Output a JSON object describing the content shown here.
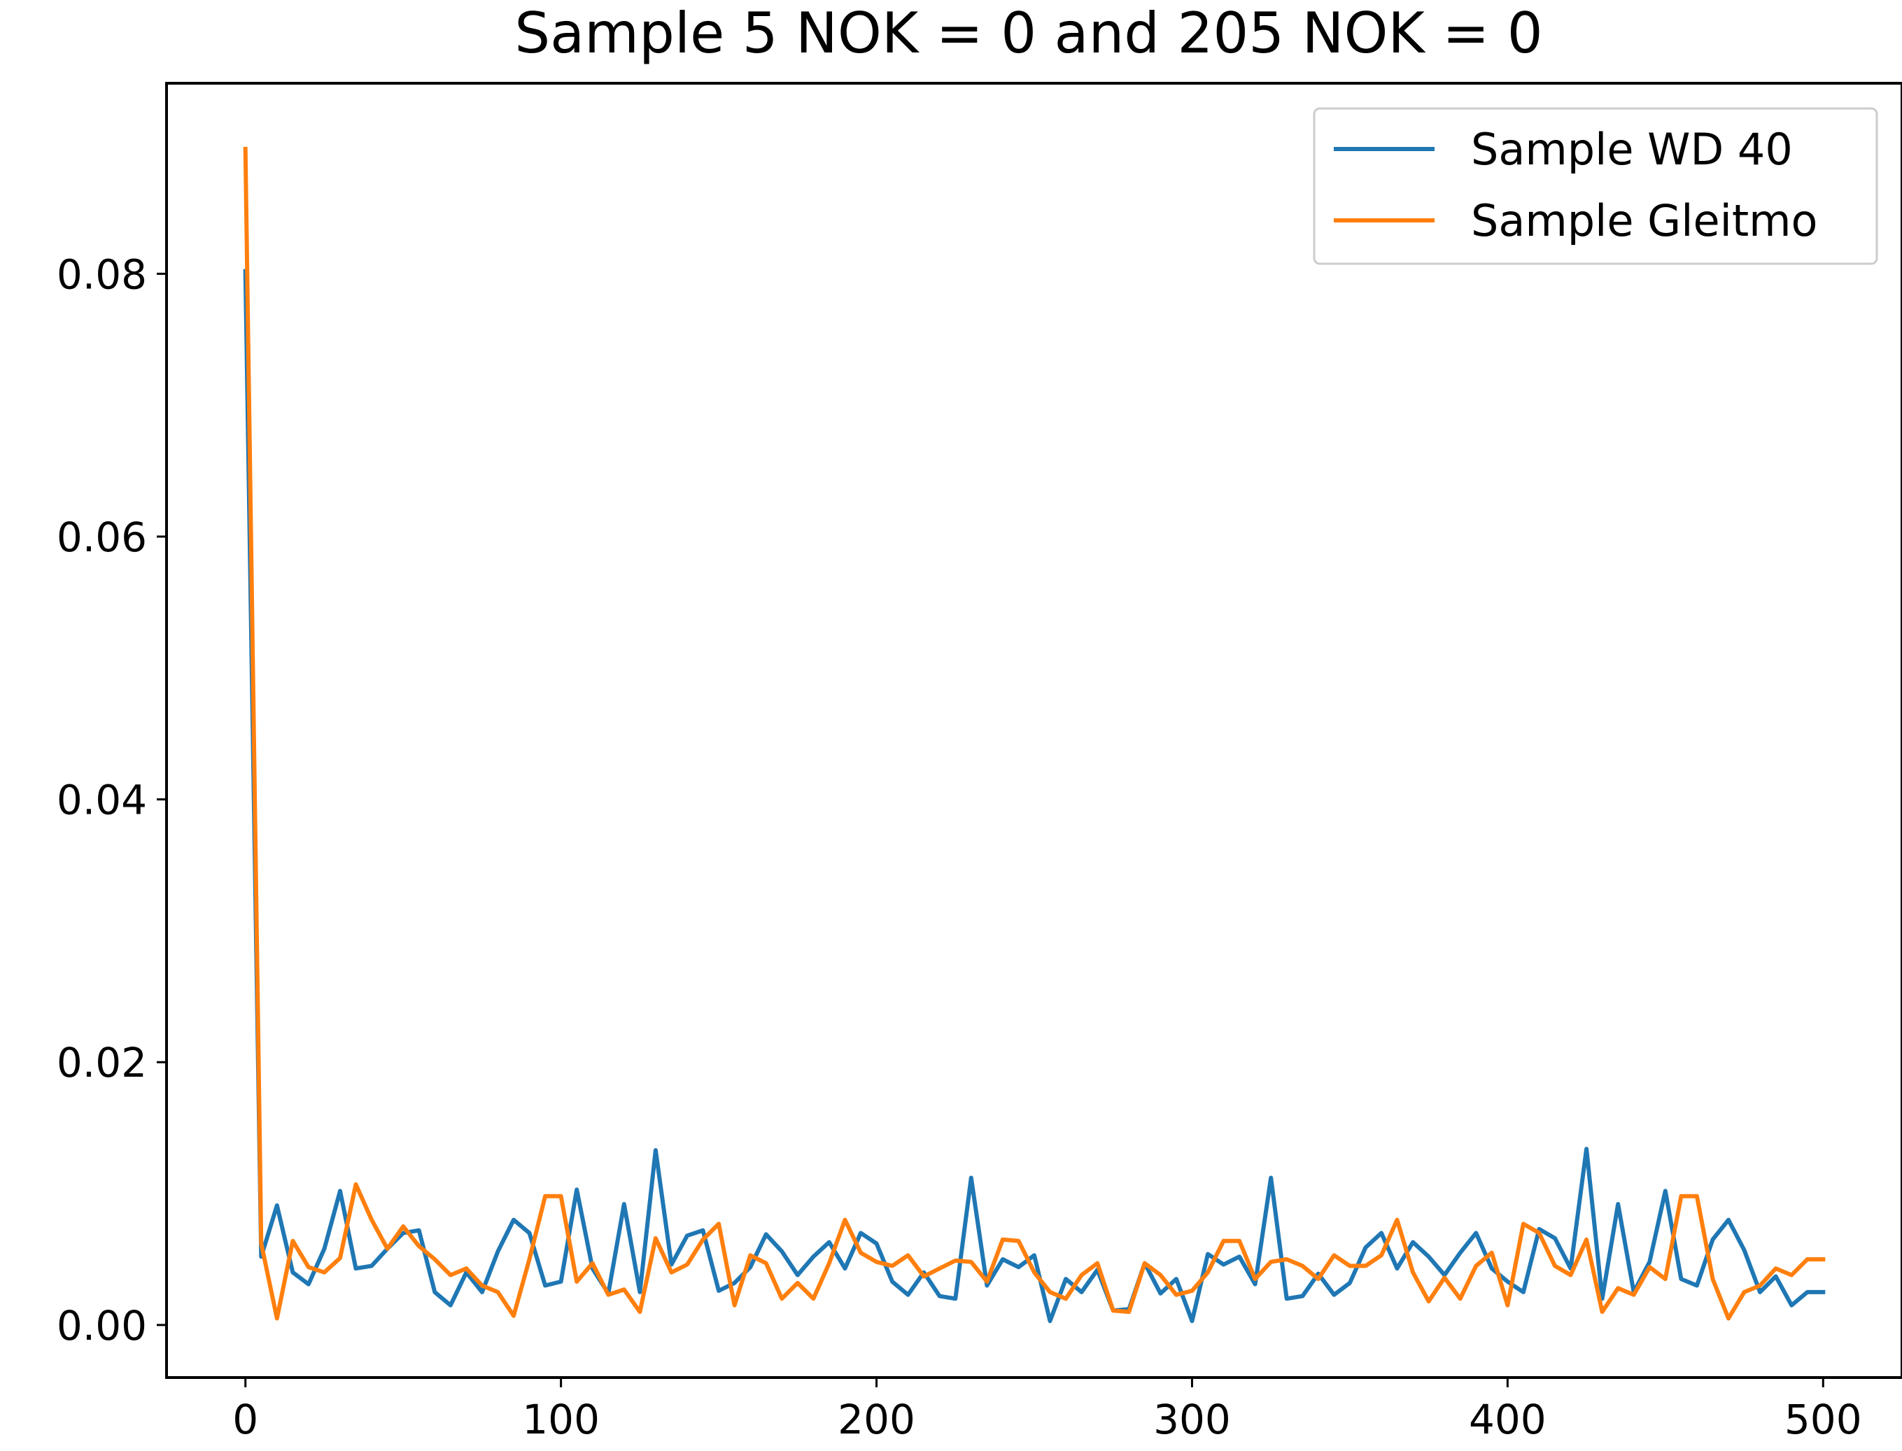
{
  "chart_data": {
    "type": "line",
    "title": "Sample 5 NOK = 0 and 205 NOK = 0",
    "xlabel": "",
    "ylabel": "",
    "xlim": [
      -25,
      525
    ],
    "ylim": [
      -0.004,
      0.0945
    ],
    "xticks": [
      0,
      100,
      200,
      300,
      400,
      500
    ],
    "xtick_labels": [
      "0",
      "100",
      "200",
      "300",
      "400",
      "500"
    ],
    "yticks": [
      0.0,
      0.02,
      0.04,
      0.06,
      0.08
    ],
    "ytick_labels": [
      "0.00",
      "0.02",
      "0.04",
      "0.06",
      "0.08"
    ],
    "grid": false,
    "legend_position": "top-right",
    "x": [
      0,
      5,
      10,
      15,
      20,
      25,
      30,
      35,
      40,
      45,
      50,
      55,
      60,
      65,
      70,
      75,
      80,
      85,
      90,
      95,
      100,
      105,
      110,
      115,
      120,
      125,
      130,
      135,
      140,
      145,
      150,
      155,
      160,
      165,
      170,
      175,
      180,
      185,
      190,
      195,
      200,
      205,
      210,
      215,
      220,
      225,
      230,
      235,
      240,
      245,
      250,
      255,
      260,
      265,
      270,
      275,
      280,
      285,
      290,
      295,
      300,
      305,
      310,
      315,
      320,
      325,
      330,
      335,
      340,
      345,
      350,
      355,
      360,
      365,
      370,
      375,
      380,
      385,
      390,
      395,
      400,
      405,
      410,
      415,
      420,
      425,
      430,
      435,
      440,
      445,
      450,
      455,
      460,
      465,
      470,
      475,
      480,
      485,
      490,
      495,
      500
    ],
    "series": [
      {
        "name": "Sample WD 40",
        "color": "#1f77b4",
        "values": [
          0.0802,
          0.0052,
          0.0091,
          0.004,
          0.0031,
          0.0058,
          0.0102,
          0.0043,
          0.0045,
          0.0058,
          0.007,
          0.0072,
          0.0025,
          0.0015,
          0.004,
          0.0025,
          0.0056,
          0.008,
          0.007,
          0.003,
          0.0033,
          0.0103,
          0.0043,
          0.0024,
          0.0092,
          0.0025,
          0.0133,
          0.0046,
          0.0068,
          0.0072,
          0.0026,
          0.0032,
          0.0044,
          0.0069,
          0.0056,
          0.0038,
          0.0052,
          0.0063,
          0.0043,
          0.007,
          0.0062,
          0.0033,
          0.0023,
          0.004,
          0.0022,
          0.002,
          0.0112,
          0.003,
          0.005,
          0.0044,
          0.0053,
          0.0003,
          0.0035,
          0.0025,
          0.0042,
          0.0011,
          0.0012,
          0.0047,
          0.0024,
          0.0035,
          0.0003,
          0.0054,
          0.0046,
          0.0052,
          0.0031,
          0.0112,
          0.002,
          0.0022,
          0.0039,
          0.0023,
          0.0032,
          0.0059,
          0.007,
          0.0043,
          0.0063,
          0.0052,
          0.0038,
          0.0055,
          0.007,
          0.0043,
          0.0033,
          0.0025,
          0.0073,
          0.0066,
          0.0043,
          0.0134,
          0.002,
          0.0092,
          0.0025,
          0.0048,
          0.0102,
          0.0035,
          0.003,
          0.0065,
          0.008,
          0.0057,
          0.0025,
          0.0037,
          0.0015,
          0.0025,
          0.0025
        ]
      },
      {
        "name": "Sample Gleitmo",
        "color": "#ff7f0e",
        "values": [
          0.0895,
          0.0062,
          0.0005,
          0.0064,
          0.0044,
          0.004,
          0.0051,
          0.0107,
          0.008,
          0.0058,
          0.0075,
          0.006,
          0.005,
          0.0038,
          0.0043,
          0.003,
          0.0025,
          0.0007,
          0.005,
          0.0098,
          0.0098,
          0.0033,
          0.0047,
          0.0023,
          0.0027,
          0.001,
          0.0066,
          0.004,
          0.0046,
          0.0065,
          0.0077,
          0.0015,
          0.0053,
          0.0047,
          0.002,
          0.0032,
          0.002,
          0.0047,
          0.008,
          0.0055,
          0.0048,
          0.0045,
          0.0053,
          0.0037,
          0.0043,
          0.0049,
          0.0048,
          0.0033,
          0.0065,
          0.0064,
          0.004,
          0.0025,
          0.002,
          0.0038,
          0.0047,
          0.0011,
          0.001,
          0.0047,
          0.0038,
          0.0023,
          0.0026,
          0.004,
          0.0064,
          0.0064,
          0.0035,
          0.0048,
          0.005,
          0.0045,
          0.0035,
          0.0053,
          0.0045,
          0.0045,
          0.0053,
          0.008,
          0.004,
          0.0018,
          0.0036,
          0.002,
          0.0045,
          0.0055,
          0.0015,
          0.0077,
          0.007,
          0.0045,
          0.0038,
          0.0065,
          0.001,
          0.0028,
          0.0023,
          0.0044,
          0.0035,
          0.0098,
          0.0098,
          0.0035,
          0.0005,
          0.0025,
          0.003,
          0.0043,
          0.0038,
          0.005,
          0.005
        ]
      }
    ]
  }
}
